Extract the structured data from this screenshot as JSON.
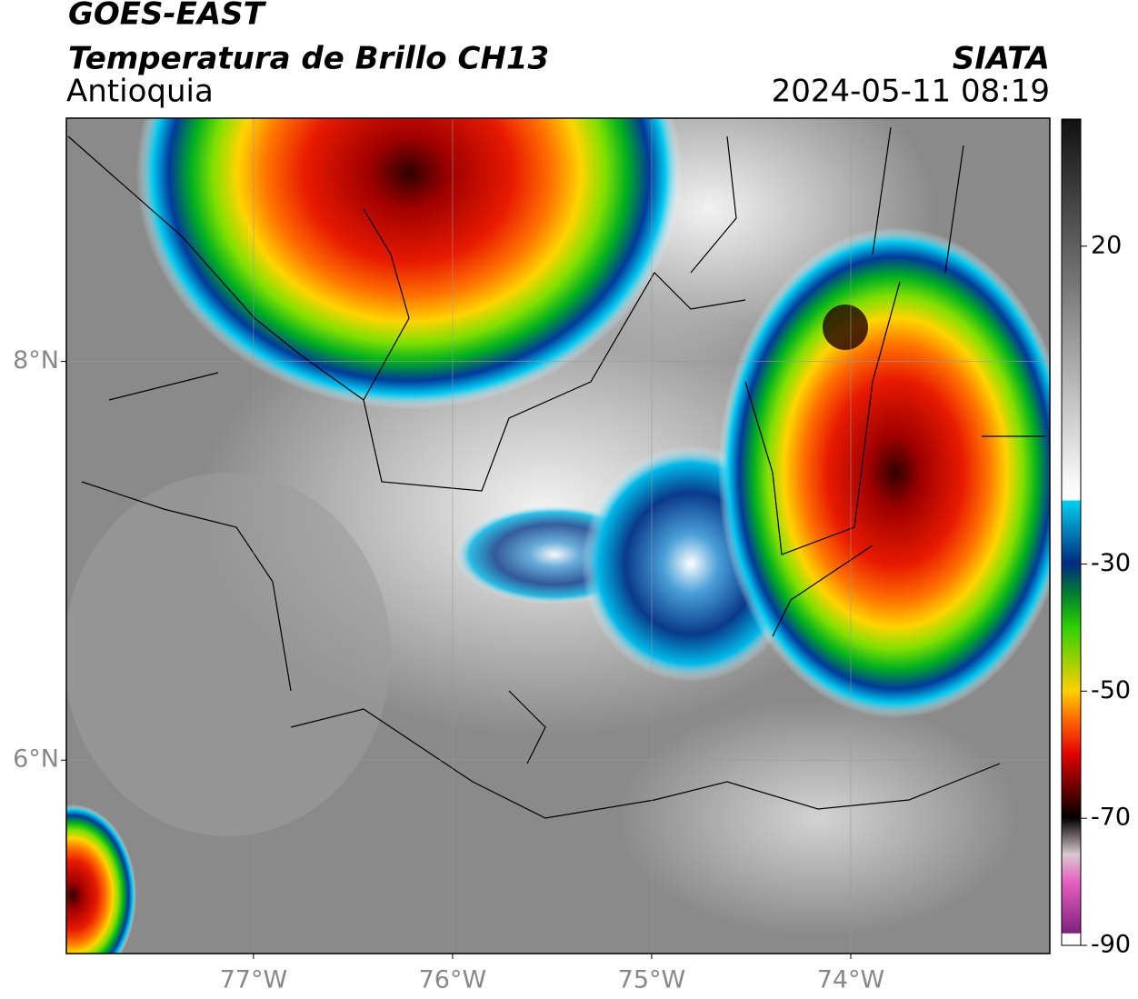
{
  "header": {
    "title": "GOES-EAST",
    "subtitle": "Temperatura de Brillo CH13",
    "region": "Antioquia",
    "source": "SIATA",
    "datetime": "2024-05-11 08:19"
  },
  "map": {
    "xlim": [
      -77.94,
      -73.0
    ],
    "ylim": [
      5.03,
      9.22
    ],
    "xticks": [
      {
        "value": -77,
        "label": "77°W"
      },
      {
        "value": -76,
        "label": "76°W"
      },
      {
        "value": -75,
        "label": "75°W"
      },
      {
        "value": -74,
        "label": "74°W"
      }
    ],
    "yticks": [
      {
        "value": 8,
        "label": "8°N"
      },
      {
        "value": 6,
        "label": "6°N"
      }
    ],
    "grid": true
  },
  "colorbar": {
    "lim": [
      -90,
      40
    ],
    "ticks": [
      20,
      -30,
      -50,
      -70,
      -90
    ]
  }
}
